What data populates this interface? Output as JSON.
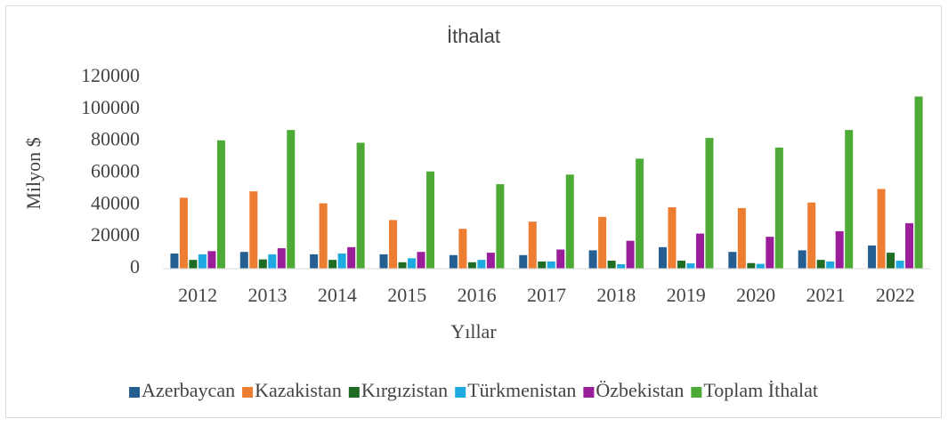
{
  "chart_data": {
    "type": "bar",
    "title": "İthalat",
    "x_label": "Yıllar",
    "y_label": "Milyon $",
    "categories": [
      "2012",
      "2013",
      "2014",
      "2015",
      "2016",
      "2017",
      "2018",
      "2019",
      "2020",
      "2021",
      "2022"
    ],
    "series": [
      {
        "name": "Azerbaycan",
        "color": "#255e91",
        "values": [
          9500,
          10500,
          9000,
          9000,
          8500,
          8500,
          11500,
          13500,
          10500,
          11500,
          14500
        ]
      },
      {
        "name": "Kazakistan",
        "color": "#ed7d31",
        "values": [
          44500,
          48500,
          41000,
          30500,
          25000,
          29500,
          32500,
          38500,
          38000,
          41500,
          50000
        ]
      },
      {
        "name": "Kırgızistan",
        "color": "#1e6b24",
        "values": [
          5500,
          5800,
          5500,
          4000,
          4000,
          4500,
          5000,
          5000,
          3500,
          5500,
          10000
        ]
      },
      {
        "name": "Türkmenistan",
        "color": "#1fa9e1",
        "values": [
          9000,
          9000,
          9500,
          6500,
          5500,
          4500,
          2800,
          3300,
          3000,
          4500,
          5000
        ]
      },
      {
        "name": "Özbekistan",
        "color": "#9a1e9a",
        "values": [
          11000,
          12800,
          13500,
          10500,
          10000,
          12000,
          17500,
          22000,
          20000,
          23500,
          28500
        ]
      },
      {
        "name": "Toplam İthalat",
        "color": "#4eaa37",
        "values": [
          80500,
          87000,
          79000,
          61000,
          53000,
          59000,
          69000,
          82000,
          76000,
          87000,
          108000
        ]
      }
    ],
    "ylim": [
      0,
      120000
    ],
    "yticks": [
      0,
      20000,
      40000,
      60000,
      80000,
      100000,
      120000
    ],
    "grid": false,
    "legend": "bottom"
  }
}
